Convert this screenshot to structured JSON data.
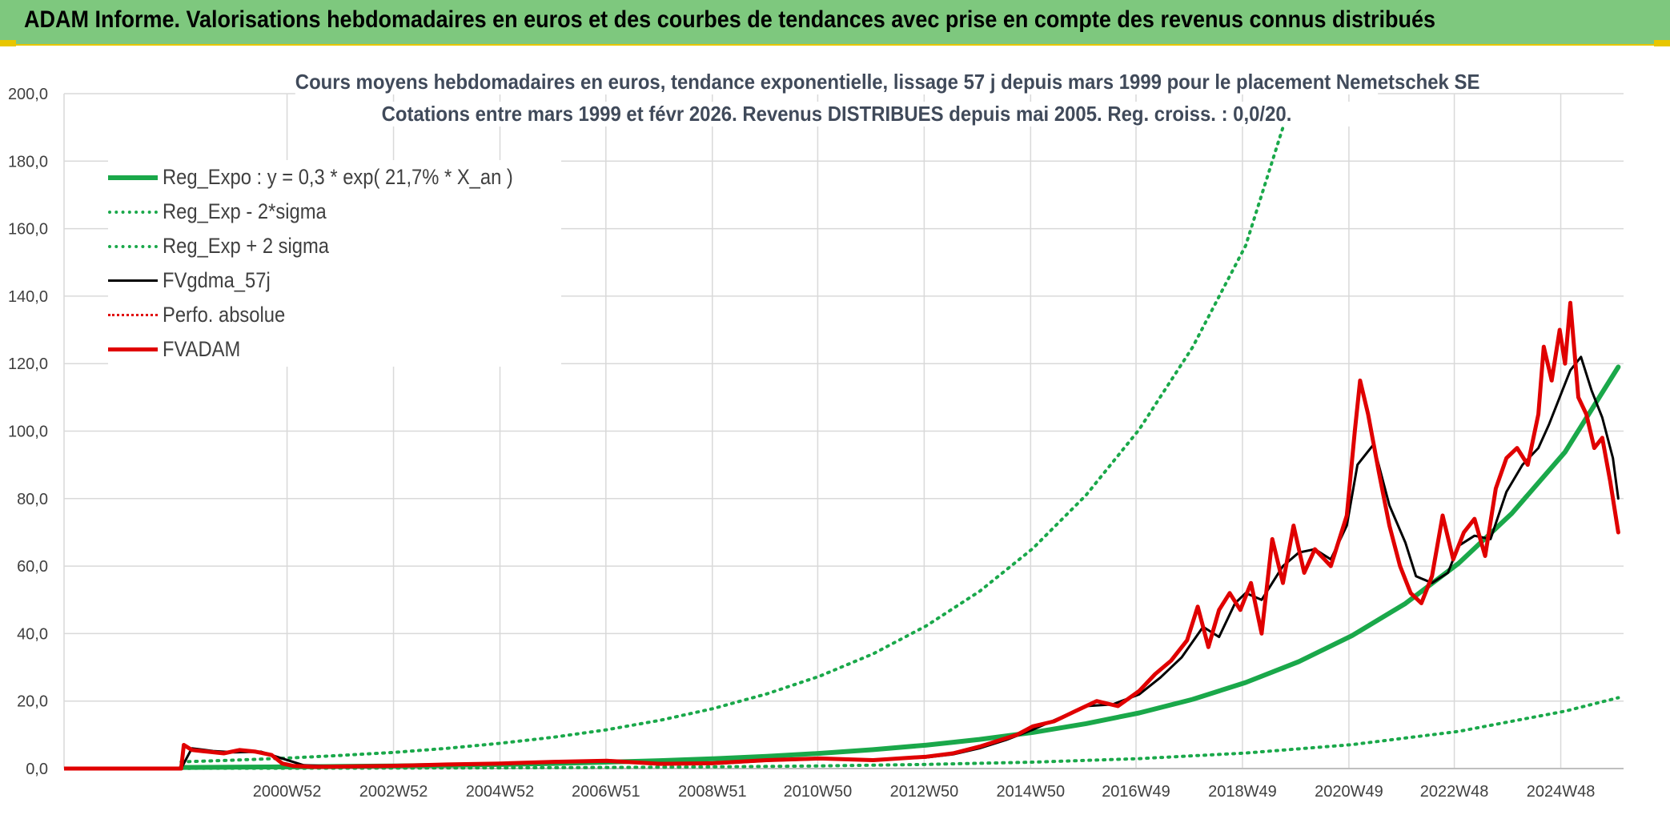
{
  "header": {
    "title": "ADAM Informe. Valorisations hebdomadaires en euros et des courbes de tendances avec prise en compte des revenus connus distribués"
  },
  "chart_data": {
    "type": "line",
    "title_line1": "Cours moyens hebdomadaires en euros, tendance exponentielle, lissage 57 j depuis mars 1999 pour le placement Nemetschek SE",
    "title_line2": "Cotations entre mars 1999 et févr 2026. Revenus DISTRIBUES depuis mai 2005. Reg. croiss. : 0,0/20.",
    "xlabel": "",
    "ylabel": "",
    "ylim": [
      0,
      200
    ],
    "y_ticks": [
      "0,0",
      "20,0",
      "40,0",
      "60,0",
      "80,0",
      "100,0",
      "120,0",
      "140,0",
      "160,0",
      "180,0",
      "200,0"
    ],
    "x_tick_labels": [
      "2000W52",
      "2002W52",
      "2004W52",
      "2006W51",
      "2008W51",
      "2010W50",
      "2012W50",
      "2014W50",
      "2016W49",
      "2018W49",
      "2020W49",
      "2022W48",
      "2024W48"
    ],
    "x_tick_years": [
      2000.99,
      2002.99,
      2004.99,
      2006.98,
      2008.98,
      2010.96,
      2012.96,
      2014.96,
      2016.94,
      2018.94,
      2020.94,
      2022.92,
      2024.92
    ],
    "x_range_years": [
      1996.8,
      2026.1
    ],
    "grid": true,
    "legend_position": "top-left",
    "series": [
      {
        "name": "Reg_Expo : y = 0,3 * exp( 21,7% *  X_an )",
        "color": "#1aa84a",
        "style": "solid",
        "width": 6,
        "x": [
          1999.0,
          2000.0,
          2001.0,
          2002.0,
          2003.0,
          2004.0,
          2005.0,
          2006.0,
          2007.0,
          2008.0,
          2009.0,
          2010.0,
          2011.0,
          2012.0,
          2013.0,
          2014.0,
          2015.0,
          2016.0,
          2017.0,
          2018.0,
          2019.0,
          2020.0,
          2021.0,
          2022.0,
          2023.0,
          2024.0,
          2025.0,
          2026.0
        ],
        "y": [
          0.33,
          0.41,
          0.51,
          0.64,
          0.79,
          0.98,
          1.22,
          1.52,
          1.89,
          2.35,
          2.92,
          3.62,
          4.5,
          5.59,
          6.95,
          8.63,
          10.7,
          13.3,
          16.5,
          20.5,
          25.5,
          31.7,
          39.4,
          48.9,
          60.8,
          75.6,
          93.8,
          119.0
        ]
      },
      {
        "name": "Reg_Exp - 2*sigma",
        "color": "#1aa84a",
        "style": "dotted",
        "width": 4,
        "x": [
          1999.0,
          2001.0,
          2003.0,
          2005.0,
          2007.0,
          2009.0,
          2011.0,
          2013.0,
          2015.0,
          2017.0,
          2019.0,
          2021.0,
          2023.0,
          2025.0,
          2026.0
        ],
        "y": [
          0.06,
          0.09,
          0.14,
          0.21,
          0.33,
          0.51,
          0.79,
          1.23,
          1.9,
          2.95,
          4.6,
          7.1,
          11.0,
          17.0,
          21.0
        ]
      },
      {
        "name": "Reg_Exp + 2 sigma",
        "color": "#1aa84a",
        "style": "dotted",
        "width": 4,
        "x": [
          1999.0,
          2000.0,
          2001.0,
          2002.0,
          2003.0,
          2004.0,
          2005.0,
          2006.0,
          2007.0,
          2008.0,
          2009.0,
          2010.0,
          2011.0,
          2012.0,
          2013.0,
          2014.0,
          2015.0,
          2016.0,
          2017.0,
          2018.0,
          2019.0,
          2019.7
        ],
        "y": [
          2.0,
          2.5,
          3.1,
          3.9,
          4.8,
          6.0,
          7.5,
          9.3,
          11.5,
          14.3,
          17.8,
          22.1,
          27.4,
          34.0,
          42.3,
          52.5,
          65.2,
          81.0,
          100.5,
          124.8,
          155.0,
          190.0
        ]
      },
      {
        "name": "FVgdma_57j",
        "color": "#000000",
        "style": "solid",
        "width": 3,
        "x": [
          1996.8,
          1999.0,
          1999.2,
          1999.6,
          2000.0,
          2000.5,
          2000.9,
          2001.3,
          2002.0,
          2003.0,
          2004.0,
          2005.0,
          2006.0,
          2007.0,
          2008.0,
          2009.0,
          2010.0,
          2011.0,
          2012.0,
          2013.0,
          2013.5,
          2014.0,
          2014.5,
          2015.0,
          2015.5,
          2016.0,
          2016.5,
          2017.0,
          2017.4,
          2017.8,
          2018.2,
          2018.5,
          2018.8,
          2019.0,
          2019.3,
          2019.5,
          2019.7,
          2020.0,
          2020.3,
          2020.6,
          2020.9,
          2021.1,
          2021.4,
          2021.7,
          2022.0,
          2022.2,
          2022.5,
          2022.8,
          2023.0,
          2023.3,
          2023.6,
          2023.9,
          2024.2,
          2024.5,
          2024.7,
          2024.9,
          2025.1,
          2025.3,
          2025.5,
          2025.7,
          2025.9,
          2026.0
        ],
        "y": [
          0,
          0,
          6.0,
          5.2,
          4.8,
          5.0,
          3.0,
          1.0,
          0.6,
          0.8,
          1.0,
          1.3,
          1.8,
          2.1,
          1.6,
          1.4,
          2.3,
          2.8,
          2.6,
          3.3,
          4.2,
          6.0,
          8.5,
          11.5,
          15.0,
          18.5,
          19.0,
          22.0,
          27.0,
          33.0,
          42.0,
          39.0,
          49.0,
          52.0,
          50.0,
          55.0,
          60.0,
          64.0,
          65.0,
          62.0,
          72.0,
          90.0,
          96.0,
          78.0,
          67.0,
          57.0,
          55.0,
          58.0,
          66.0,
          69.0,
          68.0,
          82.0,
          90.0,
          95.0,
          102.0,
          110.0,
          118.0,
          122.0,
          112.0,
          104.0,
          92.0,
          80.0
        ]
      },
      {
        "name": "Perfo. absolue",
        "color": "#e00000",
        "style": "dotted",
        "width": 3,
        "x": [],
        "y": []
      },
      {
        "name": "FVADAM",
        "color": "#e00000",
        "style": "solid",
        "width": 5,
        "x": [
          1996.8,
          1999.0,
          1999.05,
          1999.2,
          1999.5,
          1999.8,
          2000.1,
          2000.4,
          2000.7,
          2000.9,
          2001.1,
          2001.5,
          2002.0,
          2003.0,
          2004.0,
          2005.0,
          2006.0,
          2007.0,
          2008.0,
          2009.0,
          2010.0,
          2011.0,
          2012.0,
          2013.0,
          2013.5,
          2014.0,
          2014.3,
          2014.7,
          2015.0,
          2015.4,
          2015.8,
          2016.2,
          2016.6,
          2017.0,
          2017.3,
          2017.6,
          2017.9,
          2018.1,
          2018.3,
          2018.5,
          2018.7,
          2018.9,
          2019.1,
          2019.3,
          2019.5,
          2019.7,
          2019.9,
          2020.1,
          2020.3,
          2020.6,
          2020.9,
          2021.05,
          2021.15,
          2021.3,
          2021.5,
          2021.7,
          2021.9,
          2022.1,
          2022.3,
          2022.5,
          2022.7,
          2022.9,
          2023.1,
          2023.3,
          2023.5,
          2023.7,
          2023.9,
          2024.1,
          2024.3,
          2024.5,
          2024.6,
          2024.75,
          2024.9,
          2025.0,
          2025.1,
          2025.25,
          2025.4,
          2025.55,
          2025.7,
          2025.85,
          2026.0
        ],
        "y": [
          0,
          0,
          7.0,
          5.5,
          5.0,
          4.5,
          5.5,
          5.0,
          4.0,
          1.5,
          0.8,
          0.5,
          0.6,
          0.8,
          1.2,
          1.5,
          2.0,
          2.3,
          1.4,
          1.6,
          2.5,
          3.0,
          2.5,
          3.5,
          4.5,
          6.5,
          8.0,
          10.0,
          12.5,
          14.0,
          17.0,
          20.0,
          18.5,
          23.0,
          28.0,
          32.0,
          38.0,
          48.0,
          36.0,
          47.0,
          52.0,
          47.0,
          55.0,
          40.0,
          68.0,
          55.0,
          72.0,
          58.0,
          65.0,
          60.0,
          75.0,
          100.0,
          115.0,
          105.0,
          88.0,
          72.0,
          60.0,
          52.0,
          49.0,
          57.0,
          75.0,
          62.0,
          70.0,
          74.0,
          63.0,
          83.0,
          92.0,
          95.0,
          90.0,
          105.0,
          125.0,
          115.0,
          130.0,
          120.0,
          138.0,
          110.0,
          105.0,
          95.0,
          98.0,
          85.0,
          70.0
        ]
      }
    ]
  }
}
